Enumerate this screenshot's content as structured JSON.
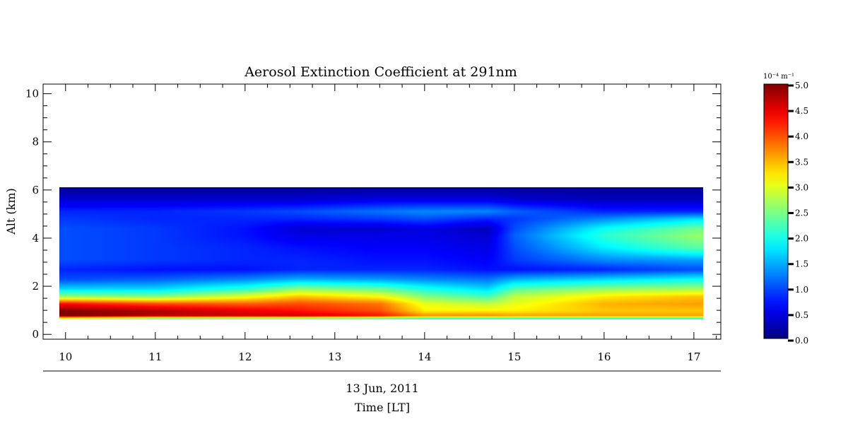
{
  "chart_data": {
    "type": "heatmap",
    "title": "Aerosol Extinction Coefficient at 291nm",
    "ylabel": "Alt (km)",
    "xlabel": "Time [LT]",
    "date_label": "13 Jun, 2011",
    "xlim": [
      9.75,
      17.3
    ],
    "ylim": [
      -0.2,
      10.4
    ],
    "x_ticks": [
      "10",
      "11",
      "12",
      "13",
      "14",
      "15",
      "16",
      "17"
    ],
    "y_ticks": [
      "0",
      "2",
      "4",
      "6",
      "8",
      "10"
    ],
    "data_time_range": [
      9.93,
      17.1
    ],
    "data_alt_range": [
      0.55,
      6.0
    ],
    "colorbar": {
      "unit_label": "10⁻⁴ m⁻¹",
      "range": [
        0.0,
        5.0
      ],
      "ticks": [
        "0.0",
        "0.5",
        "1.0",
        "1.5",
        "2.0",
        "2.5",
        "3.0",
        "3.5",
        "4.0",
        "4.5",
        "5.0"
      ],
      "colormap": "jet"
    },
    "times": [
      10.0,
      11.0,
      12.0,
      12.6,
      13.5,
      14.0,
      14.7,
      15.0,
      16.0,
      17.0
    ],
    "altitudes": [
      0.6,
      0.7,
      0.9,
      1.2,
      1.5,
      1.8,
      2.2,
      2.6,
      3.0,
      3.5,
      4.0,
      4.3,
      4.7,
      5.0,
      5.5,
      6.0
    ],
    "values": [
      [
        3.0,
        2.6,
        2.6,
        2.6,
        2.4,
        2.2,
        2.2,
        2.2,
        2.2,
        2.2
      ],
      [
        5.0,
        4.7,
        4.6,
        4.6,
        4.3,
        3.7,
        3.7,
        3.6,
        3.6,
        3.6
      ],
      [
        5.0,
        4.8,
        4.5,
        4.3,
        4.0,
        3.2,
        3.2,
        3.2,
        3.4,
        3.4
      ],
      [
        4.3,
        4.0,
        3.9,
        4.0,
        3.8,
        3.0,
        2.8,
        3.0,
        3.5,
        3.6
      ],
      [
        2.6,
        2.5,
        3.0,
        3.4,
        3.1,
        2.5,
        2.2,
        2.8,
        3.2,
        3.4
      ],
      [
        1.7,
        1.7,
        2.1,
        2.6,
        2.4,
        2.0,
        1.7,
        2.3,
        2.6,
        2.7
      ],
      [
        1.0,
        1.1,
        1.3,
        1.5,
        1.4,
        1.3,
        1.2,
        1.5,
        1.7,
        1.9
      ],
      [
        0.8,
        0.7,
        0.7,
        0.8,
        0.8,
        0.8,
        0.7,
        0.7,
        0.8,
        1.0
      ],
      [
        1.0,
        0.9,
        0.8,
        0.8,
        0.7,
        0.7,
        0.6,
        0.9,
        1.3,
        1.4
      ],
      [
        1.0,
        0.9,
        0.8,
        0.7,
        0.6,
        0.6,
        0.5,
        1.0,
        1.8,
        2.3
      ],
      [
        1.0,
        0.9,
        0.7,
        0.5,
        0.5,
        0.5,
        0.4,
        1.1,
        2.1,
        2.6
      ],
      [
        1.0,
        0.9,
        0.7,
        0.4,
        0.4,
        0.5,
        0.3,
        1.0,
        1.9,
        2.4
      ],
      [
        0.9,
        0.8,
        0.8,
        0.8,
        0.9,
        1.0,
        0.8,
        0.9,
        1.3,
        1.7
      ],
      [
        0.8,
        0.8,
        0.9,
        1.0,
        1.2,
        1.3,
        1.3,
        1.1,
        0.8,
        0.8
      ],
      [
        0.4,
        0.4,
        0.4,
        0.4,
        0.5,
        0.5,
        0.5,
        0.4,
        0.3,
        0.3
      ],
      [
        0.1,
        0.1,
        0.1,
        0.1,
        0.1,
        0.1,
        0.1,
        0.1,
        0.1,
        0.1
      ]
    ]
  }
}
